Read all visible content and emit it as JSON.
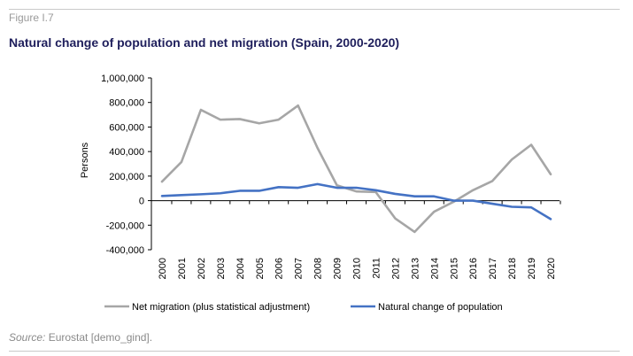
{
  "figure_label": "Figure I.7",
  "title": "Natural change of population and net migration (Spain, 2000-2020)",
  "source": {
    "label": "Source:",
    "text": " Eurostat [demo_gind]."
  },
  "colors": {
    "net_migration": "#a6a6a6",
    "natural_change": "#4472c4",
    "axis": "#000000"
  },
  "chart_data": {
    "type": "line",
    "ylabel": "Persons",
    "xlabel": "",
    "ylim": [
      -400000,
      1000000
    ],
    "yticks": [
      -400000,
      -200000,
      0,
      200000,
      400000,
      600000,
      800000,
      1000000
    ],
    "ytick_labels": [
      "-400,000",
      "-200,000",
      "0",
      "200,000",
      "400,000",
      "600,000",
      "800,000",
      "1,000,000"
    ],
    "categories": [
      "2000",
      "2001",
      "2002",
      "2003",
      "2004",
      "2005",
      "2006",
      "2007",
      "2008",
      "2009",
      "2010",
      "2011",
      "2012",
      "2013",
      "2014",
      "2015",
      "2016",
      "2017",
      "2018",
      "2019",
      "2020"
    ],
    "legend_position": "bottom",
    "grid": false,
    "series": [
      {
        "name": "Net migration (plus statistical adjustment)",
        "values": [
          155000,
          315000,
          740000,
          660000,
          665000,
          630000,
          660000,
          775000,
          430000,
          125000,
          75000,
          70000,
          -145000,
          -255000,
          -90000,
          -10000,
          85000,
          160000,
          335000,
          455000,
          215000
        ]
      },
      {
        "name": "Natural change of population",
        "values": [
          38000,
          45000,
          52000,
          60000,
          80000,
          80000,
          110000,
          105000,
          135000,
          105000,
          105000,
          85000,
          55000,
          35000,
          35000,
          0,
          0,
          -25000,
          -50000,
          -55000,
          -150000
        ]
      }
    ]
  }
}
